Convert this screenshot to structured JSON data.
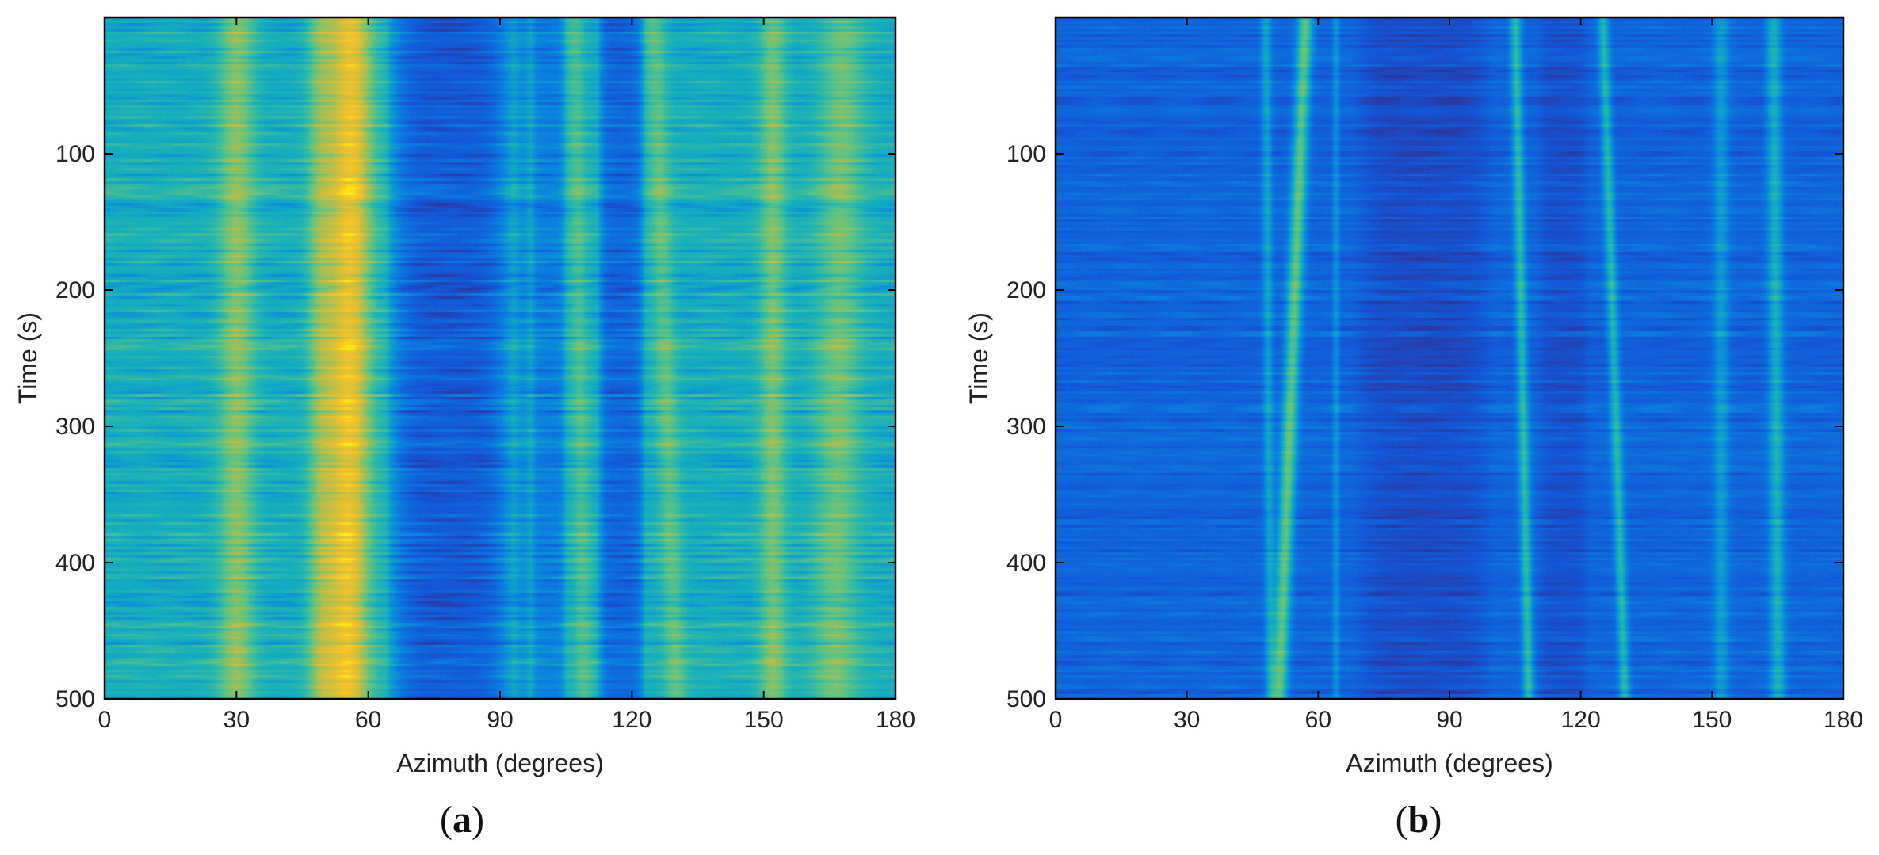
{
  "chart_data": [
    {
      "type": "heatmap",
      "panel_label": "(a)",
      "panel_letter": "a",
      "xlabel": "Azimuth (degrees)",
      "ylabel": "Time (s)",
      "xlim": [
        0,
        180
      ],
      "ylim": [
        500,
        0
      ],
      "x_ticks": [
        0,
        30,
        60,
        90,
        120,
        150,
        180
      ],
      "y_ticks": [
        100,
        200,
        300,
        400,
        500
      ],
      "colormap": "parula",
      "background_level": 0.45,
      "tracks": [
        {
          "az_start": 30,
          "az_end": 30,
          "width": 4,
          "intensity": 0.22
        },
        {
          "az_start": 56,
          "az_end": 55,
          "width": 5,
          "intensity": 0.42
        },
        {
          "az_start": 49,
          "az_end": 49,
          "width": 3,
          "intensity": 0.18
        },
        {
          "az_start": 95,
          "az_end": 95,
          "width": 2,
          "intensity": -0.1
        },
        {
          "az_start": 107,
          "az_end": 109,
          "width": 2,
          "intensity": 0.12
        },
        {
          "az_start": 125,
          "az_end": 130,
          "width": 2.5,
          "intensity": 0.15
        },
        {
          "az_start": 152,
          "az_end": 152,
          "width": 3,
          "intensity": 0.2
        },
        {
          "az_start": 168,
          "az_end": 166,
          "width": 5,
          "intensity": 0.18
        }
      ],
      "dark_regions": [
        {
          "az_from": 64,
          "az_to": 93,
          "depth": 0.35
        },
        {
          "az_from": 112,
          "az_to": 123,
          "depth": 0.3
        },
        {
          "az_from": 97,
          "az_to": 105,
          "depth": 0.2
        }
      ],
      "stripe_strength": 0.12
    },
    {
      "type": "heatmap",
      "panel_label": "(b)",
      "panel_letter": "b",
      "xlabel": "Azimuth (degrees)",
      "ylabel": "Time (s)",
      "xlim": [
        0,
        180
      ],
      "ylim": [
        500,
        0
      ],
      "x_ticks": [
        0,
        30,
        60,
        90,
        120,
        150,
        180
      ],
      "y_ticks": [
        100,
        200,
        300,
        400,
        500
      ],
      "colormap": "parula",
      "background_level": 0.2,
      "tracks": [
        {
          "az_start": 57,
          "az_end": 51,
          "width": 1.8,
          "intensity": 0.4
        },
        {
          "az_start": 48,
          "az_end": 49,
          "width": 1.2,
          "intensity": 0.2
        },
        {
          "az_start": 64,
          "az_end": 64,
          "width": 0.8,
          "intensity": 0.14
        },
        {
          "az_start": 105,
          "az_end": 108,
          "width": 1.3,
          "intensity": 0.3
        },
        {
          "az_start": 125,
          "az_end": 130,
          "width": 1.3,
          "intensity": 0.28
        },
        {
          "az_start": 152,
          "az_end": 152,
          "width": 1.8,
          "intensity": 0.18
        },
        {
          "az_start": 164,
          "az_end": 165,
          "width": 1.8,
          "intensity": 0.25
        }
      ],
      "dark_regions": [
        {
          "az_from": 68,
          "az_to": 100,
          "depth": 0.1
        },
        {
          "az_from": 110,
          "az_to": 122,
          "depth": 0.08
        }
      ],
      "stripe_strength": 0.08
    }
  ]
}
